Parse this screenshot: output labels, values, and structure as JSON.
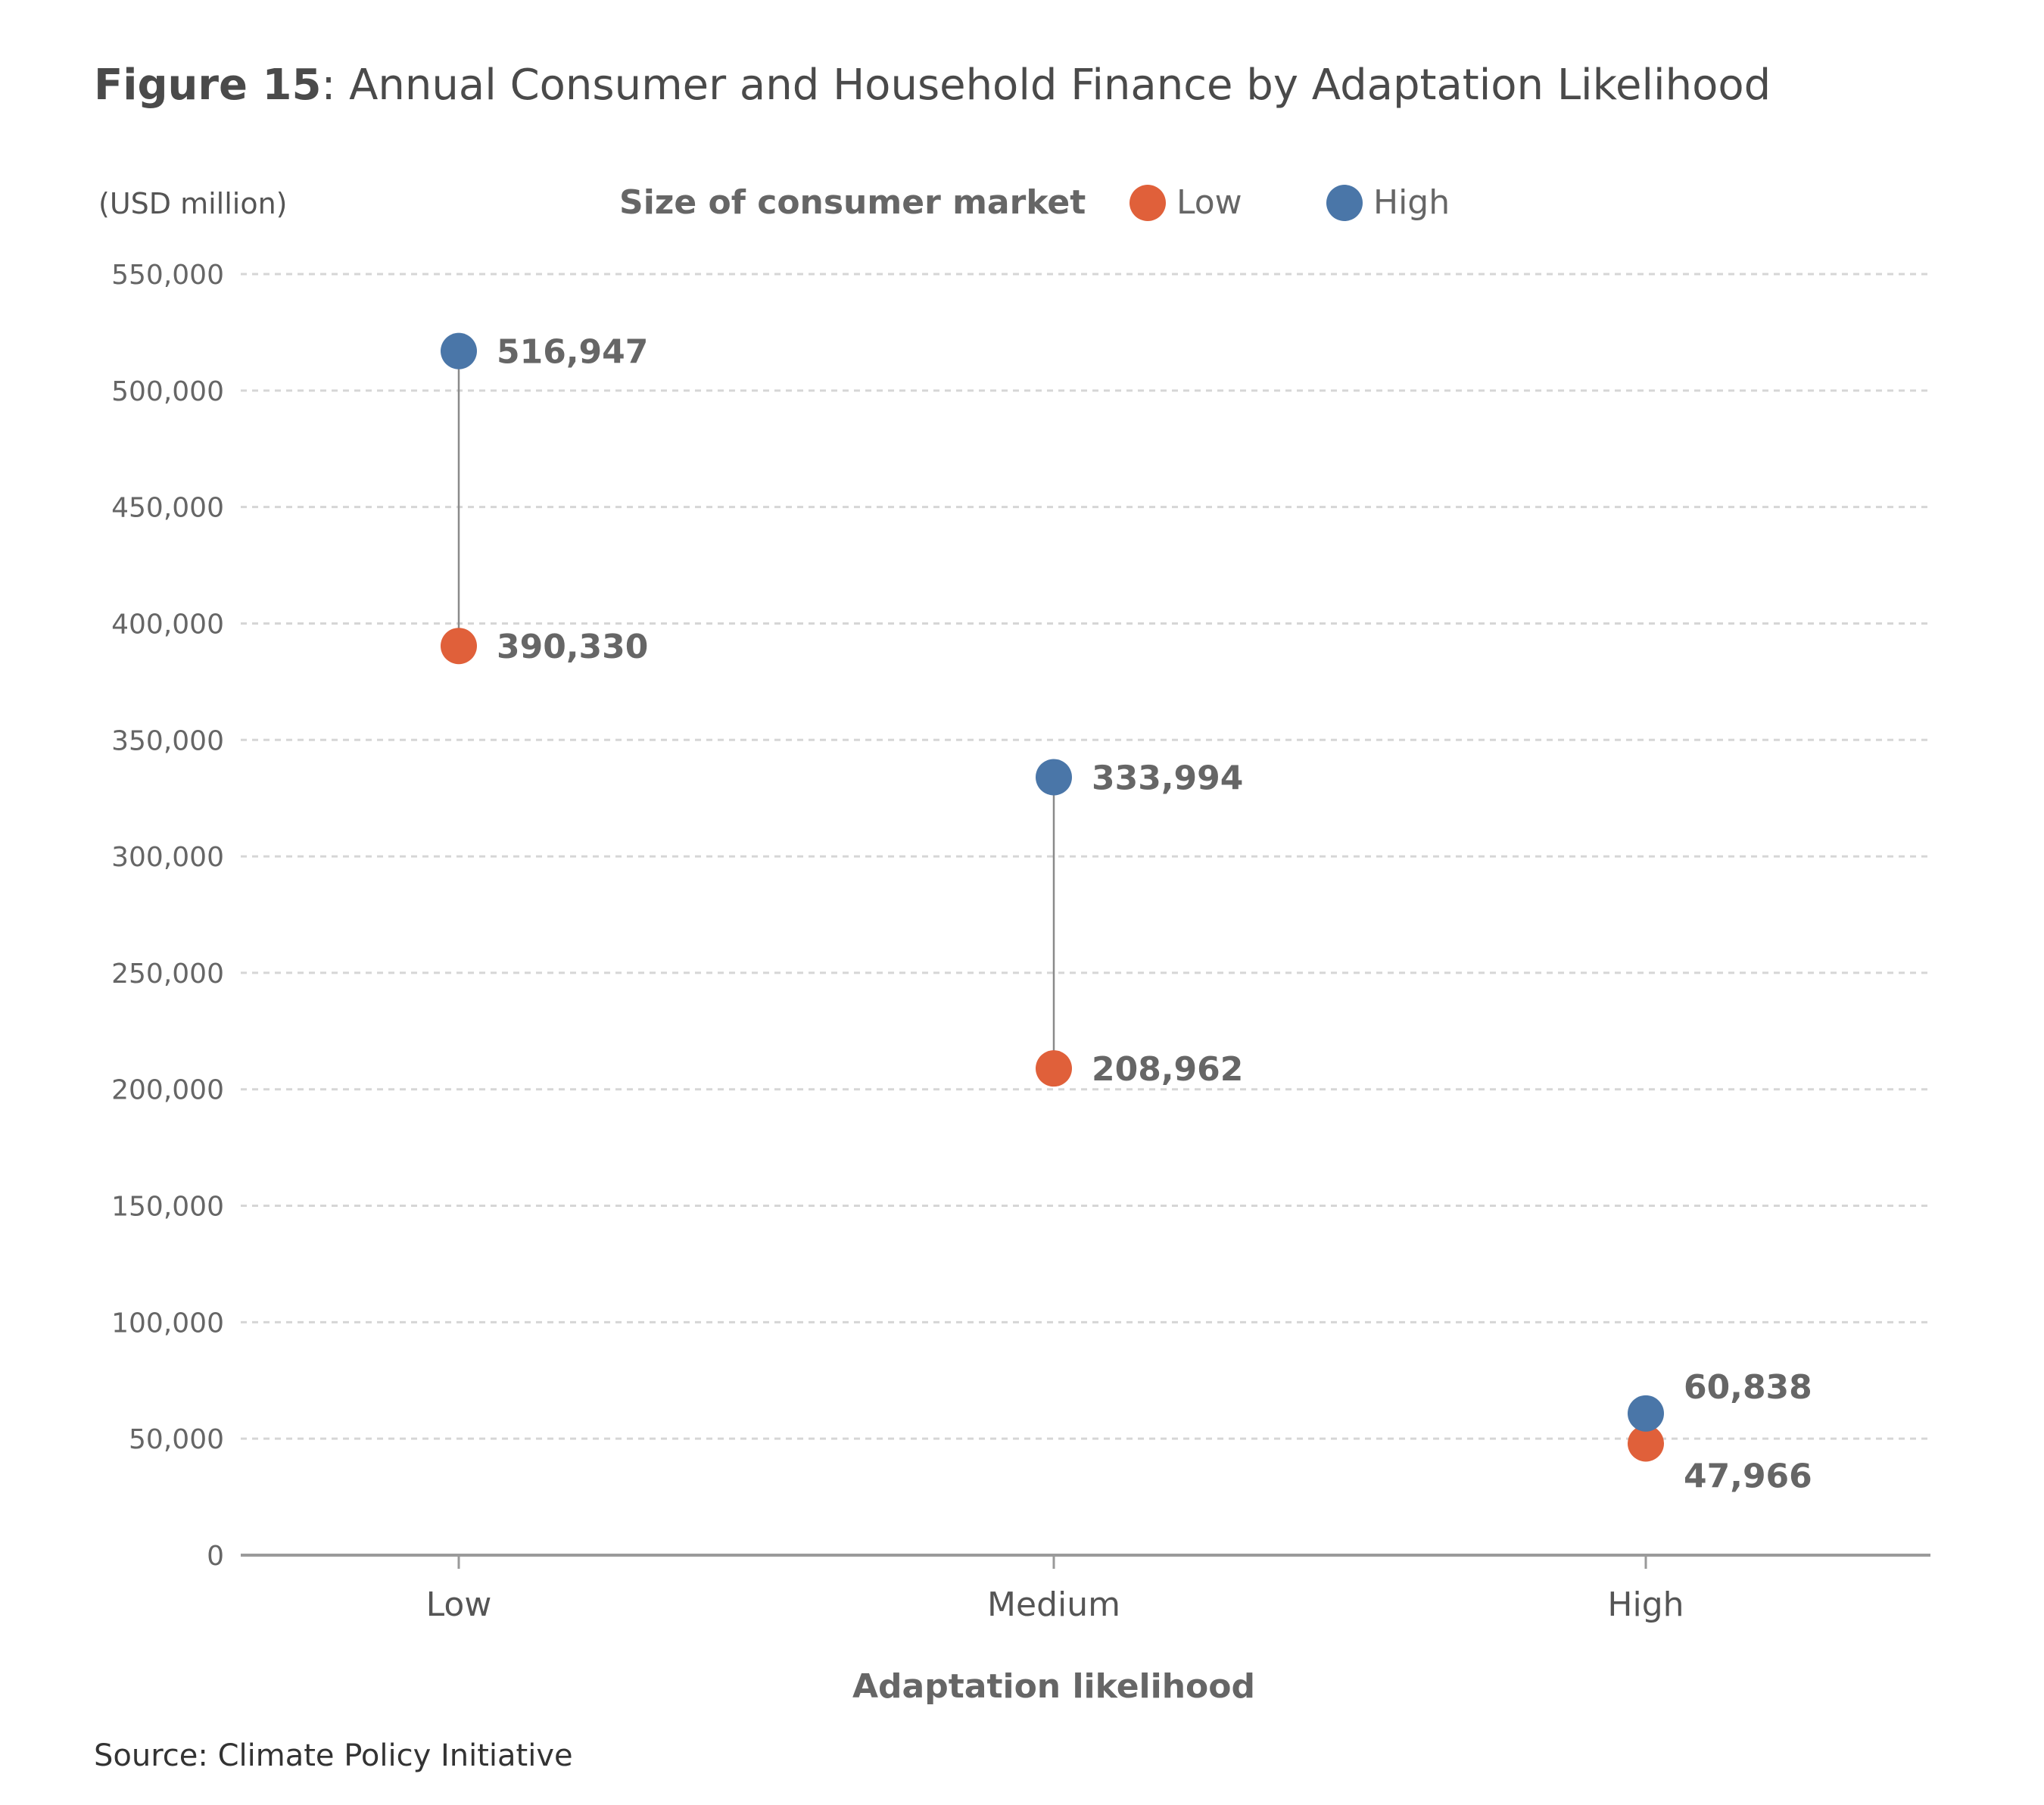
{
  "figure": {
    "number": "Figure 15",
    "title": ": Annual Consumer and Household Finance by Adaptation Likelihood"
  },
  "source": "Source: Climate Policy Initiative",
  "chart_data": {
    "type": "scatter",
    "style": "dumbbell",
    "unit_label": "(USD million)",
    "xlabel": "Adaptation likelihood",
    "ylabel": "",
    "categories": [
      "Low",
      "Medium",
      "High"
    ],
    "ylim": [
      0,
      550000
    ],
    "yticks": [
      0,
      50000,
      100000,
      150000,
      200000,
      250000,
      300000,
      350000,
      400000,
      450000,
      500000,
      550000
    ],
    "ytick_labels": [
      "0",
      "50,000",
      "100,000",
      "150,000",
      "200,000",
      "250,000",
      "300,000",
      "350,000",
      "400,000",
      "450,000",
      "500,000",
      "550,000"
    ],
    "grid": "horizontal dashed",
    "legend": {
      "title": "Size of consumer market",
      "placement": "top"
    },
    "series": [
      {
        "name": "Low",
        "color": "#e0603a",
        "values": [
          390330,
          208962,
          47966
        ],
        "labels": [
          "390,330",
          "208,962",
          "47,966"
        ]
      },
      {
        "name": "High",
        "color": "#4a76a8",
        "values": [
          516947,
          333994,
          60838
        ],
        "labels": [
          "516,947",
          "333,994",
          "60,838"
        ]
      }
    ]
  }
}
